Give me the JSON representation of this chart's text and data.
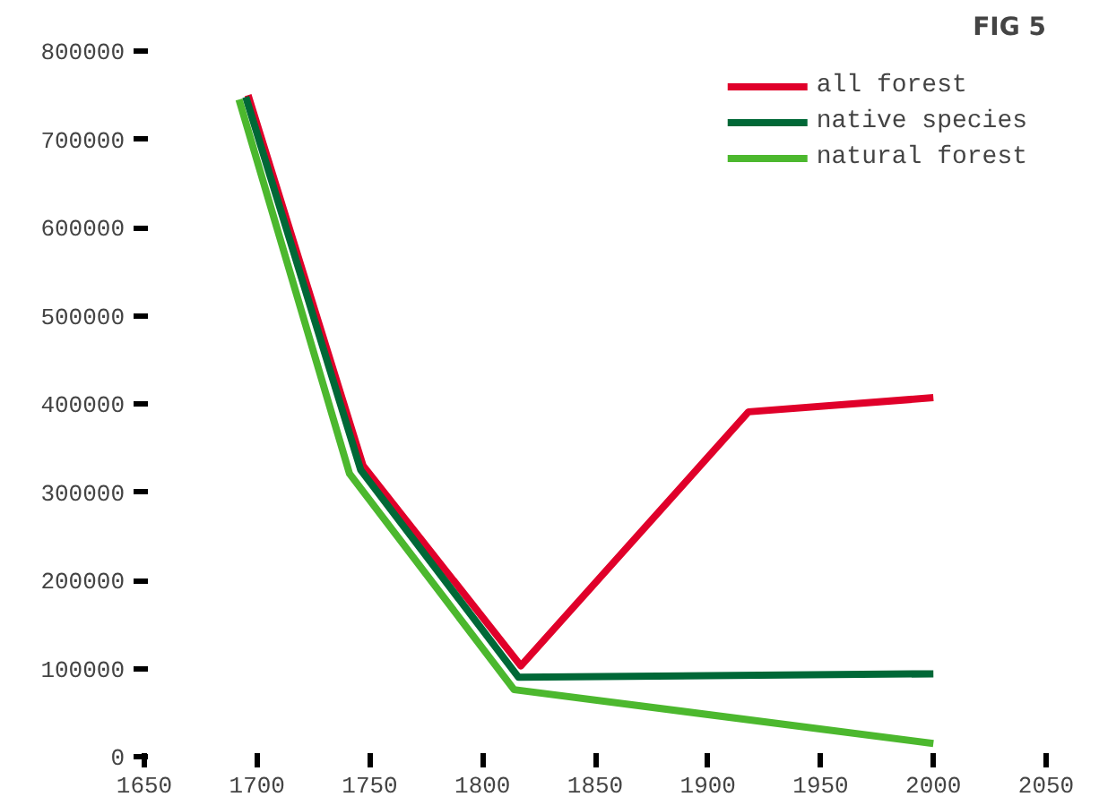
{
  "chart_data": {
    "type": "line",
    "title": "FIG 5",
    "xlim": [
      1650,
      2050
    ],
    "xticks": [
      1650,
      1700,
      1750,
      1800,
      1850,
      1900,
      1950,
      2000,
      2050
    ],
    "ylim": [
      0,
      800000
    ],
    "yticks": [
      0,
      100000,
      200000,
      300000,
      400000,
      500000,
      600000,
      700000,
      800000
    ],
    "grid": false,
    "legend": "top right",
    "marker": "none",
    "line_style": "solid",
    "series": [
      {
        "name": "all forest",
        "color": "#e0002a",
        "x": [
          1696,
          1747,
          1817,
          1918,
          2000
        ],
        "values": [
          750000,
          330000,
          103000,
          391000,
          407000
        ]
      },
      {
        "name": "native species",
        "color": "#006837",
        "x": [
          1695,
          1746,
          1816,
          2000
        ],
        "values": [
          748000,
          325000,
          90000,
          94000
        ]
      },
      {
        "name": "natural forest",
        "color": "#4cb82e",
        "x": [
          1692,
          1741,
          1814,
          2000
        ],
        "values": [
          745000,
          321000,
          76000,
          15000
        ]
      }
    ]
  }
}
